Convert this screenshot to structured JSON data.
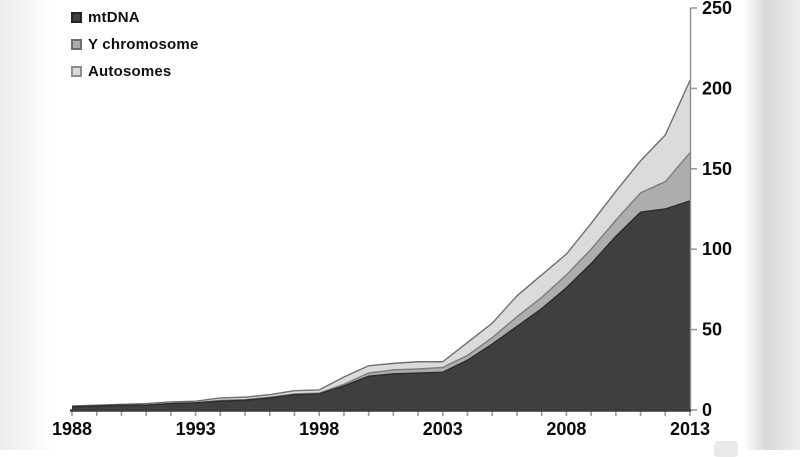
{
  "page": {
    "background": "#ffffff"
  },
  "chart_data": {
    "type": "area",
    "stacked": true,
    "title": "",
    "xlabel": "",
    "ylabel": "",
    "x": [
      1988,
      1989,
      1990,
      1991,
      1992,
      1993,
      1994,
      1995,
      1996,
      1997,
      1998,
      1999,
      2000,
      2001,
      2002,
      2003,
      2004,
      2005,
      2006,
      2007,
      2008,
      2009,
      2010,
      2011,
      2012,
      2013
    ],
    "series": [
      {
        "name": "mtDNA",
        "color": "#3f3f3f",
        "edge": "#2b2b2b",
        "swatch_border": "#242424",
        "values": [
          2,
          2.5,
          3,
          3,
          4,
          4.5,
          5.5,
          6,
          7.5,
          9.5,
          10,
          15,
          21,
          22.5,
          23,
          23.5,
          31,
          41,
          52,
          63,
          76,
          91,
          108,
          123,
          125,
          130
        ]
      },
      {
        "name": "Y chromosome",
        "color": "#adadad",
        "edge": "#7d7d7d",
        "swatch_border": "#6e6e6e",
        "values": [
          0,
          0,
          0,
          0,
          0,
          0,
          0.5,
          0.5,
          0.5,
          0.5,
          0.5,
          1,
          2,
          2.5,
          2.5,
          3,
          3,
          4,
          6,
          7,
          8,
          9,
          10,
          12,
          17,
          30
        ]
      },
      {
        "name": "Autosomes",
        "color": "#dbdbdb",
        "edge": "#6f6f6f",
        "swatch_border": "#8f8f8f",
        "values": [
          0.5,
          0.5,
          0.5,
          1,
          1,
          1,
          1.5,
          1.5,
          1.5,
          2,
          2,
          4.5,
          4.5,
          4,
          4.5,
          3.5,
          8,
          9,
          13,
          14,
          13,
          16,
          18,
          20,
          29,
          45
        ]
      }
    ],
    "cumulative_tops_2013": {
      "mtDNA": 130,
      "y_chromosome": 160,
      "total": 205
    },
    "xlim": [
      1988,
      2013
    ],
    "ylim": [
      0,
      250
    ],
    "xticks_minor_every": 1,
    "xticks_major": [
      1988,
      1993,
      1998,
      2003,
      2008,
      2013
    ],
    "yticks": [
      0,
      50,
      100,
      150,
      200,
      250
    ],
    "grid": false,
    "y_axis_side": "right",
    "legend_position": "top-left",
    "axis_color": "#3a3a3a",
    "y_axis_line_color": "#8c8c8c",
    "tick_color": "#9a9a9a",
    "label_color": "#0a0a0a"
  }
}
